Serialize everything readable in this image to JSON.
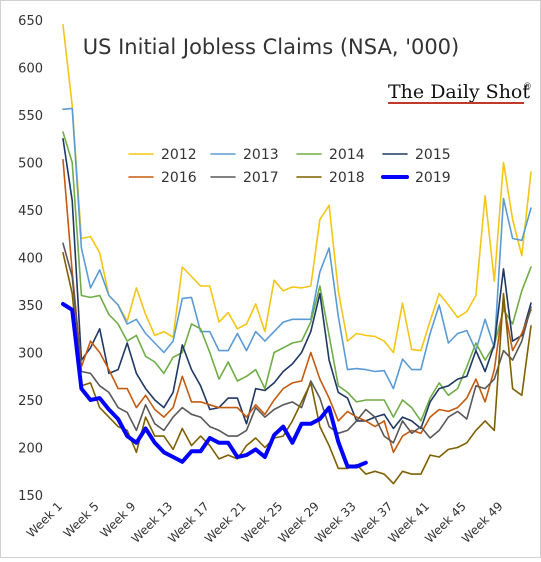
{
  "brand": {
    "name": "The Daily Shot",
    "mark": "®",
    "underline_color": "#c0392b"
  },
  "chart_data": {
    "type": "line",
    "title": "US Initial Jobless Claims (NSA, '000)",
    "xlabel": "",
    "ylabel": "",
    "ylim": [
      150,
      650
    ],
    "yticks": [
      150,
      200,
      250,
      300,
      350,
      400,
      450,
      500,
      550,
      600,
      650
    ],
    "x_ticks": [
      "Week 1",
      "Week 5",
      "Week 9",
      "Week 13",
      "Week 17",
      "Week 21",
      "Week 25",
      "Week 29",
      "Week 33",
      "Week 37",
      "Week 41",
      "Week 45",
      "Week 49"
    ],
    "x_tick_weeks": [
      1,
      5,
      9,
      13,
      17,
      21,
      25,
      29,
      33,
      37,
      41,
      45,
      49
    ],
    "x_range": [
      1,
      52
    ],
    "grid": false,
    "legend_position": "upper center",
    "series": [
      {
        "name": "2012",
        "color": "#f5c518",
        "width": 1.6,
        "values": [
          645,
          560,
          420,
          422,
          405,
          360,
          350,
          333,
          368,
          340,
          318,
          322,
          316,
          390,
          380,
          370,
          370,
          332,
          342,
          325,
          330,
          351,
          322,
          376,
          365,
          369,
          368,
          370,
          440,
          455,
          365,
          312,
          320,
          318,
          317,
          312,
          300,
          352,
          303,
          302,
          333,
          362,
          350,
          337,
          343,
          360,
          465,
          375,
          500,
          440,
          402,
          490
        ]
      },
      {
        "name": "2013",
        "color": "#5b9bd5",
        "width": 1.6,
        "values": [
          556,
          557,
          410,
          368,
          387,
          360,
          350,
          330,
          335,
          320,
          310,
          300,
          312,
          357,
          358,
          322,
          322,
          302,
          302,
          320,
          302,
          322,
          312,
          322,
          332,
          335,
          335,
          335,
          385,
          410,
          338,
          282,
          283,
          282,
          280,
          281,
          262,
          293,
          282,
          282,
          320,
          350,
          310,
          320,
          323,
          302,
          335,
          305,
          462,
          420,
          418,
          452
        ]
      },
      {
        "name": "2014",
        "color": "#70ad47",
        "width": 1.6,
        "values": [
          532,
          500,
          360,
          358,
          360,
          340,
          330,
          312,
          318,
          296,
          290,
          278,
          295,
          300,
          330,
          325,
          300,
          272,
          290,
          270,
          275,
          282,
          262,
          300,
          305,
          310,
          312,
          332,
          370,
          318,
          265,
          258,
          248,
          250,
          250,
          250,
          232,
          250,
          242,
          228,
          252,
          268,
          255,
          262,
          285,
          310,
          292,
          308,
          345,
          330,
          365,
          390
        ]
      },
      {
        "name": "2015",
        "color": "#1f3864",
        "width": 1.6,
        "values": [
          525,
          460,
          292,
          305,
          325,
          278,
          282,
          310,
          278,
          262,
          250,
          242,
          258,
          308,
          282,
          265,
          240,
          242,
          252,
          252,
          225,
          262,
          260,
          268,
          280,
          288,
          300,
          322,
          362,
          292,
          258,
          252,
          228,
          228,
          232,
          235,
          220,
          232,
          228,
          220,
          248,
          262,
          265,
          272,
          275,
          302,
          280,
          308,
          388,
          312,
          318,
          352
        ]
      },
      {
        "name": "2016",
        "color": "#c55a11",
        "width": 1.6,
        "values": [
          503,
          385,
          285,
          312,
          300,
          282,
          262,
          262,
          242,
          255,
          240,
          232,
          242,
          275,
          248,
          248,
          245,
          242,
          242,
          242,
          232,
          245,
          235,
          250,
          262,
          268,
          270,
          300,
          272,
          252,
          228,
          238,
          232,
          228,
          222,
          228,
          195,
          212,
          218,
          215,
          232,
          240,
          238,
          242,
          252,
          272,
          248,
          282,
          352,
          302,
          320,
          345
        ]
      },
      {
        "name": "2017",
        "color": "#595959",
        "width": 1.6,
        "values": [
          415,
          380,
          280,
          278,
          265,
          258,
          242,
          237,
          218,
          245,
          225,
          218,
          232,
          242,
          235,
          232,
          222,
          218,
          212,
          212,
          218,
          242,
          232,
          240,
          245,
          248,
          242,
          270,
          252,
          222,
          215,
          218,
          228,
          240,
          232,
          212,
          205,
          228,
          215,
          222,
          210,
          218,
          232,
          238,
          230,
          265,
          262,
          272,
          302,
          292,
          312,
          348
        ]
      },
      {
        "name": "2018",
        "color": "#7f6000",
        "width": 1.6,
        "values": [
          405,
          362,
          265,
          268,
          242,
          232,
          222,
          218,
          195,
          232,
          212,
          212,
          198,
          220,
          202,
          212,
          202,
          188,
          192,
          188,
          202,
          210,
          200,
          210,
          212,
          228,
          248,
          268,
          222,
          202,
          178,
          178,
          182,
          172,
          175,
          172,
          162,
          175,
          172,
          172,
          192,
          190,
          198,
          200,
          205,
          218,
          228,
          218,
          362,
          262,
          255,
          328
        ]
      },
      {
        "name": "2019",
        "color": "#0000ff",
        "width": 4,
        "values": [
          351,
          345,
          262,
          250,
          252,
          240,
          230,
          212,
          205,
          220,
          205,
          195,
          190,
          185,
          196,
          196,
          210,
          205,
          205,
          190,
          192,
          198,
          190,
          213,
          222,
          205,
          225,
          225,
          230,
          242,
          206,
          180,
          180,
          184
        ]
      }
    ]
  }
}
